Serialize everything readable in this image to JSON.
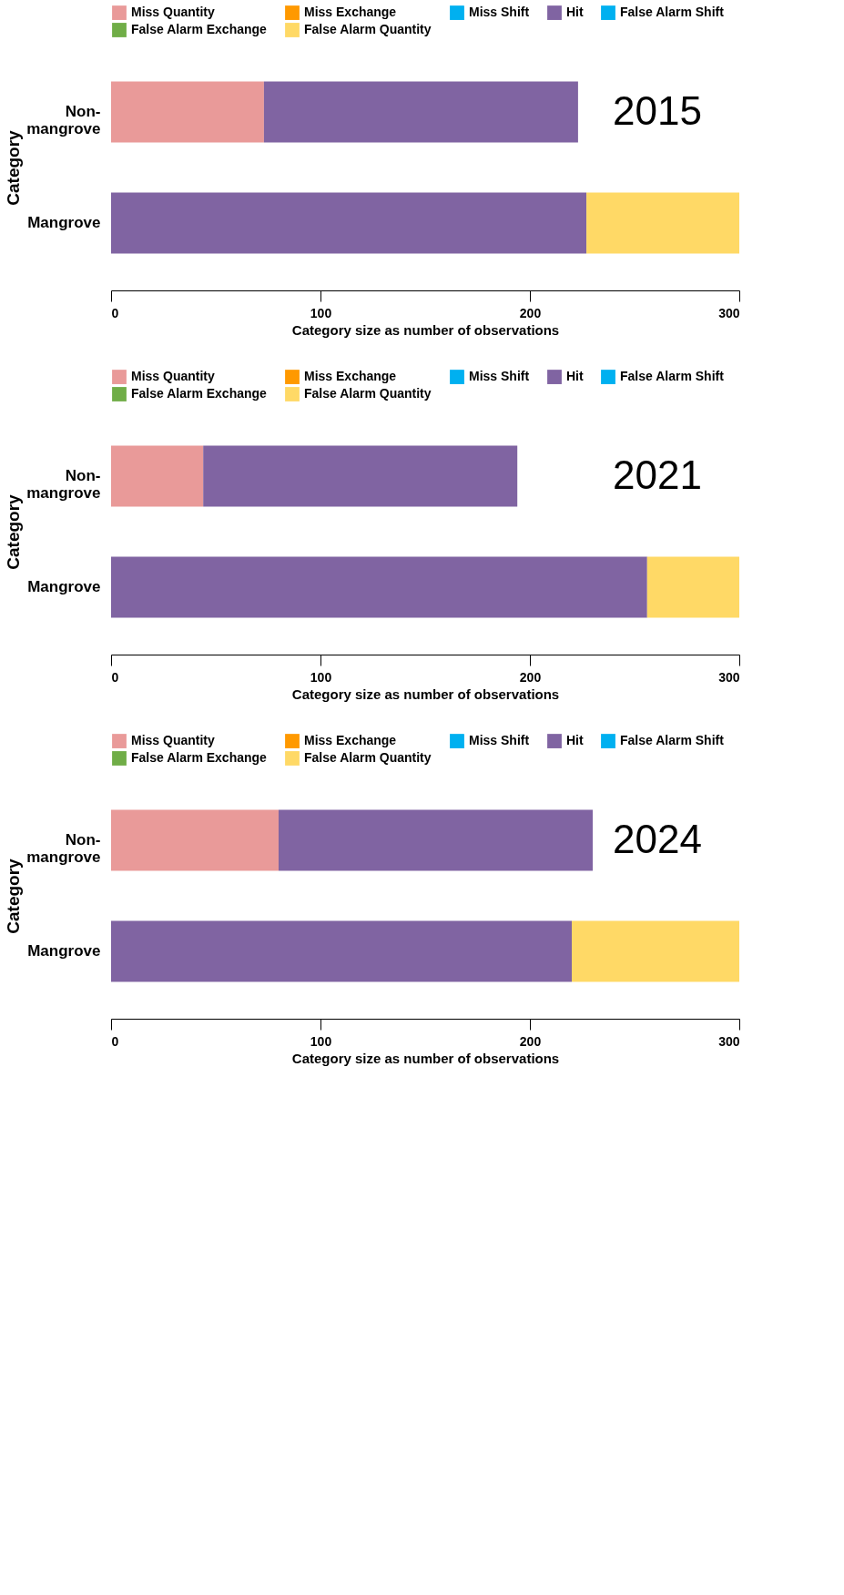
{
  "chart_data": [
    {
      "type": "bar",
      "orientation": "horizontal",
      "stacked": true,
      "legend": "top",
      "grid": false,
      "xlabel": "Category size as number of observations",
      "ylabel": "Category",
      "annotations": [
        "2015"
      ],
      "categories": [
        "Non-mangrove",
        "Mangrove"
      ],
      "xlim": [
        0,
        300
      ],
      "xticks": [
        0,
        100,
        200,
        300
      ],
      "series": [
        {
          "name": "Miss Quantity",
          "color": "#e99a99",
          "values": [
            73,
            0
          ]
        },
        {
          "name": "Miss Exchange",
          "color": "#ff9900",
          "values": [
            0,
            0
          ]
        },
        {
          "name": "Miss Shift",
          "color": "#00b0f0",
          "values": [
            0,
            0
          ]
        },
        {
          "name": "Hit",
          "color": "#8064a2",
          "values": [
            150,
            227
          ]
        },
        {
          "name": "False Alarm Shift",
          "color": "#00b0f0",
          "values": [
            0,
            0
          ]
        },
        {
          "name": "False Alarm Exchange",
          "color": "#70ad47",
          "values": [
            0,
            0
          ]
        },
        {
          "name": "False Alarm Quantity",
          "color": "#ffd966",
          "values": [
            0,
            73
          ]
        }
      ]
    },
    {
      "type": "bar",
      "orientation": "horizontal",
      "stacked": true,
      "legend": "top",
      "grid": false,
      "xlabel": "Category size as number of observations",
      "ylabel": "Category",
      "annotations": [
        "2021"
      ],
      "categories": [
        "Non-mangrove",
        "Mangrove"
      ],
      "xlim": [
        0,
        300
      ],
      "xticks": [
        0,
        100,
        200,
        300
      ],
      "series": [
        {
          "name": "Miss Quantity",
          "color": "#e99a99",
          "values": [
            44,
            0
          ]
        },
        {
          "name": "Miss Exchange",
          "color": "#ff9900",
          "values": [
            0,
            0
          ]
        },
        {
          "name": "Miss Shift",
          "color": "#00b0f0",
          "values": [
            0,
            0
          ]
        },
        {
          "name": "Hit",
          "color": "#8064a2",
          "values": [
            150,
            256
          ]
        },
        {
          "name": "False Alarm Shift",
          "color": "#00b0f0",
          "values": [
            0,
            0
          ]
        },
        {
          "name": "False Alarm Exchange",
          "color": "#70ad47",
          "values": [
            0,
            0
          ]
        },
        {
          "name": "False Alarm Quantity",
          "color": "#ffd966",
          "values": [
            0,
            44
          ]
        }
      ]
    },
    {
      "type": "bar",
      "orientation": "horizontal",
      "stacked": true,
      "legend": "top",
      "grid": false,
      "xlabel": "Category size as number of observations",
      "ylabel": "Category",
      "annotations": [
        "2024"
      ],
      "categories": [
        "Non-mangrove",
        "Mangrove"
      ],
      "xlim": [
        0,
        300
      ],
      "xticks": [
        0,
        100,
        200,
        300
      ],
      "series": [
        {
          "name": "Miss Quantity",
          "color": "#e99a99",
          "values": [
            80,
            0
          ]
        },
        {
          "name": "Miss Exchange",
          "color": "#ff9900",
          "values": [
            0,
            0
          ]
        },
        {
          "name": "Miss Shift",
          "color": "#00b0f0",
          "values": [
            0,
            0
          ]
        },
        {
          "name": "Hit",
          "color": "#8064a2",
          "values": [
            150,
            220
          ]
        },
        {
          "name": "False Alarm Shift",
          "color": "#00b0f0",
          "values": [
            0,
            0
          ]
        },
        {
          "name": "False Alarm Exchange",
          "color": "#70ad47",
          "values": [
            0,
            0
          ]
        },
        {
          "name": "False Alarm Quantity",
          "color": "#ffd966",
          "values": [
            0,
            80
          ]
        }
      ]
    }
  ]
}
